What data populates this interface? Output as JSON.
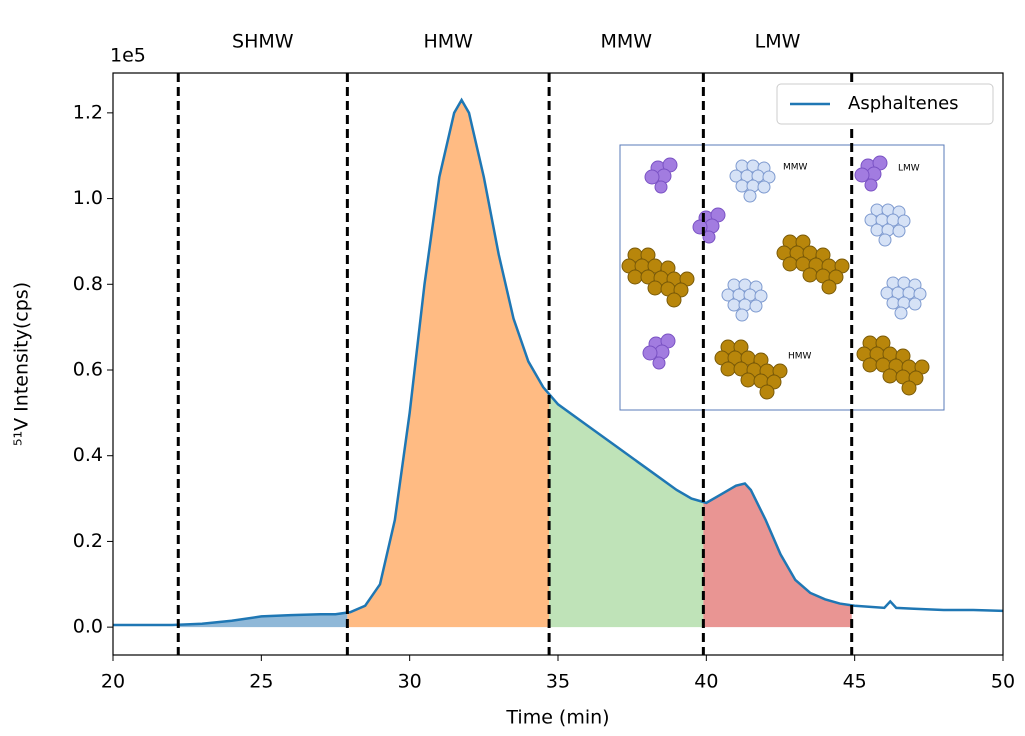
{
  "chart_data": {
    "type": "line",
    "ylabel": "⁵¹V Intensity(cps)",
    "xlabel": "Time (min)",
    "y_offset_label": "1e5",
    "xlim": [
      20,
      50
    ],
    "xticks": [
      20,
      25,
      30,
      35,
      40,
      45,
      50
    ],
    "ylim": [
      -0.065,
      1.293
    ],
    "yticks": [
      {
        "value": 0,
        "label": "0.0"
      },
      {
        "value": 0.2,
        "label": "0.2"
      },
      {
        "value": 0.4,
        "label": "0.4"
      },
      {
        "value": 0.6,
        "label": "0.6"
      },
      {
        "value": 0.8,
        "label": "0.8"
      },
      {
        "value": 1.0,
        "label": "1.0"
      },
      {
        "value": 1.2,
        "label": "1.2"
      }
    ],
    "legend": "upper right",
    "series": [
      {
        "name": "Asphaltenes",
        "color": "#1f77b4",
        "x": [
          20,
          21,
          22,
          23,
          24,
          25,
          26,
          27,
          27.5,
          28,
          28.5,
          29,
          29.5,
          30,
          30.5,
          31,
          31.5,
          31.75,
          32,
          32.5,
          33,
          33.5,
          34,
          34.5,
          35,
          36,
          37,
          38,
          39,
          39.5,
          40,
          40.5,
          41,
          41.3,
          41.5,
          42,
          42.5,
          43,
          43.5,
          44,
          44.5,
          45,
          46,
          46.2,
          46.4,
          47,
          48,
          49,
          50
        ],
        "values": [
          0.005,
          0.005,
          0.005,
          0.008,
          0.015,
          0.025,
          0.028,
          0.03,
          0.03,
          0.035,
          0.05,
          0.1,
          0.25,
          0.5,
          0.8,
          1.05,
          1.2,
          1.23,
          1.2,
          1.05,
          0.87,
          0.72,
          0.62,
          0.56,
          0.52,
          0.47,
          0.42,
          0.37,
          0.32,
          0.3,
          0.29,
          0.31,
          0.33,
          0.335,
          0.32,
          0.25,
          0.17,
          0.11,
          0.08,
          0.065,
          0.055,
          0.05,
          0.045,
          0.06,
          0.045,
          0.043,
          0.04,
          0.04,
          0.038
        ]
      }
    ],
    "dividers": [
      22.2,
      27.9,
      34.7,
      39.9,
      44.9
    ],
    "regions": [
      {
        "name": "SHMW",
        "start": 22.2,
        "end": 27.9,
        "color": "#8fb8d8"
      },
      {
        "name": "HMW",
        "start": 27.9,
        "end": 34.7,
        "color": "#ffbb83"
      },
      {
        "name": "MMW",
        "start": 34.7,
        "end": 39.9,
        "color": "#bfe3b8"
      },
      {
        "name": "LMW",
        "start": 39.9,
        "end": 44.9,
        "color": "#e99593"
      }
    ],
    "inset": {
      "labels": [
        "MMW",
        "LMW",
        "HMW"
      ]
    }
  }
}
